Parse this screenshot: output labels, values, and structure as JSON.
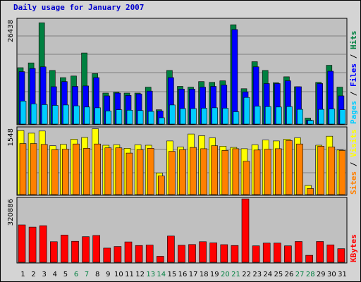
{
  "chart_data": {
    "type": "bar",
    "title": "Daily usage for January 2007",
    "days": [
      "1",
      "2",
      "3",
      "4",
      "5",
      "6",
      "7",
      "8",
      "9",
      "10",
      "11",
      "12",
      "13",
      "14",
      "15",
      "16",
      "17",
      "18",
      "19",
      "20",
      "21",
      "22",
      "23",
      "24",
      "25",
      "26",
      "27",
      "28",
      "29",
      "30",
      "31"
    ],
    "weekend_days": [
      "6",
      "7",
      "13",
      "14",
      "20",
      "21",
      "27",
      "28"
    ],
    "panels": [
      {
        "id": "hits",
        "ymax_label": "26438",
        "ymax": 26438,
        "axis_label_parts": [
          {
            "text": "Pages",
            "color": "#00ccff"
          },
          {
            "text": " / ",
            "color": "#000000"
          },
          {
            "text": "Files",
            "color": "#0000ff"
          },
          {
            "text": " / ",
            "color": "#000000"
          },
          {
            "text": "Hits",
            "color": "#008040"
          }
        ],
        "series": [
          {
            "name": "Hits",
            "color": "#008040",
            "values": [
              14200,
              15400,
              25500,
              13500,
              11700,
              12100,
              17900,
              12700,
              7800,
              8000,
              7800,
              7800,
              9300,
              3600,
              13500,
              9500,
              9300,
              10700,
              10500,
              10900,
              25000,
              8900,
              15700,
              13500,
              10400,
              11900,
              9400,
              1500,
              10500,
              14800,
              9300
            ]
          },
          {
            "name": "Files",
            "color": "#0000ff",
            "values": [
              13200,
              14000,
              14400,
              9400,
              10700,
              9500,
              9600,
              11700,
              7100,
              7800,
              7200,
              7600,
              8300,
              3300,
              11700,
              8800,
              8800,
              9300,
              9500,
              9800,
              23800,
              8100,
              14400,
              10200,
              10200,
              10900,
              9400,
              1000,
              10200,
              13300,
              7100
            ]
          },
          {
            "name": "Pages",
            "color": "#00ccff",
            "values": [
              5800,
              5100,
              4900,
              4700,
              4800,
              4600,
              4300,
              4100,
              3300,
              3600,
              3500,
              3400,
              3200,
              1600,
              4800,
              3900,
              3900,
              4000,
              4100,
              4000,
              3100,
              6700,
              4500,
              4400,
              4300,
              4400,
              3700,
              900,
              3700,
              3800,
              3600
            ]
          }
        ]
      },
      {
        "id": "visits",
        "ymax_label": "1548",
        "ymax": 1548,
        "axis_label_parts": [
          {
            "text": "Sites",
            "color": "#ff8000"
          },
          {
            "text": " / ",
            "color": "#000000"
          },
          {
            "text": "Visits",
            "color": "#ffff00"
          }
        ],
        "series": [
          {
            "name": "Visits",
            "color": "#ffff00",
            "values": [
              1480,
              1420,
              1470,
              1130,
              1160,
              1280,
              1320,
              1520,
              1140,
              1150,
              1070,
              1150,
              1140,
              500,
              1240,
              1100,
              1400,
              1360,
              1310,
              1120,
              1090,
              1060,
              1150,
              1260,
              1240,
              1280,
              1310,
              210,
              1140,
              1350,
              1030
            ]
          },
          {
            "name": "Sites",
            "color": "#ff8000",
            "values": [
              1180,
              1180,
              1160,
              1040,
              1050,
              1170,
              1070,
              1170,
              1080,
              1080,
              960,
              1040,
              1070,
              430,
              1000,
              1040,
              1090,
              1060,
              1130,
              1020,
              1060,
              770,
              1030,
              1050,
              1060,
              1250,
              1170,
              140,
              1120,
              1100,
              1020
            ]
          }
        ]
      },
      {
        "id": "kbytes",
        "ymax_label": "320886",
        "ymax": 320886,
        "axis_label_parts": [
          {
            "text": "KBytes",
            "color": "#ff0000"
          }
        ],
        "series": [
          {
            "name": "KBytes",
            "color": "#ff0000",
            "values": [
              187000,
              176000,
              183000,
              103000,
              136000,
              105000,
              128000,
              134000,
              71000,
              79000,
              102000,
              84000,
              86000,
              30000,
              131000,
              85000,
              89000,
              103000,
              97000,
              88000,
              84000,
              317000,
              82000,
              96000,
              96000,
              82000,
              104000,
              35000,
              104000,
              87000,
              68000
            ]
          }
        ]
      }
    ]
  }
}
